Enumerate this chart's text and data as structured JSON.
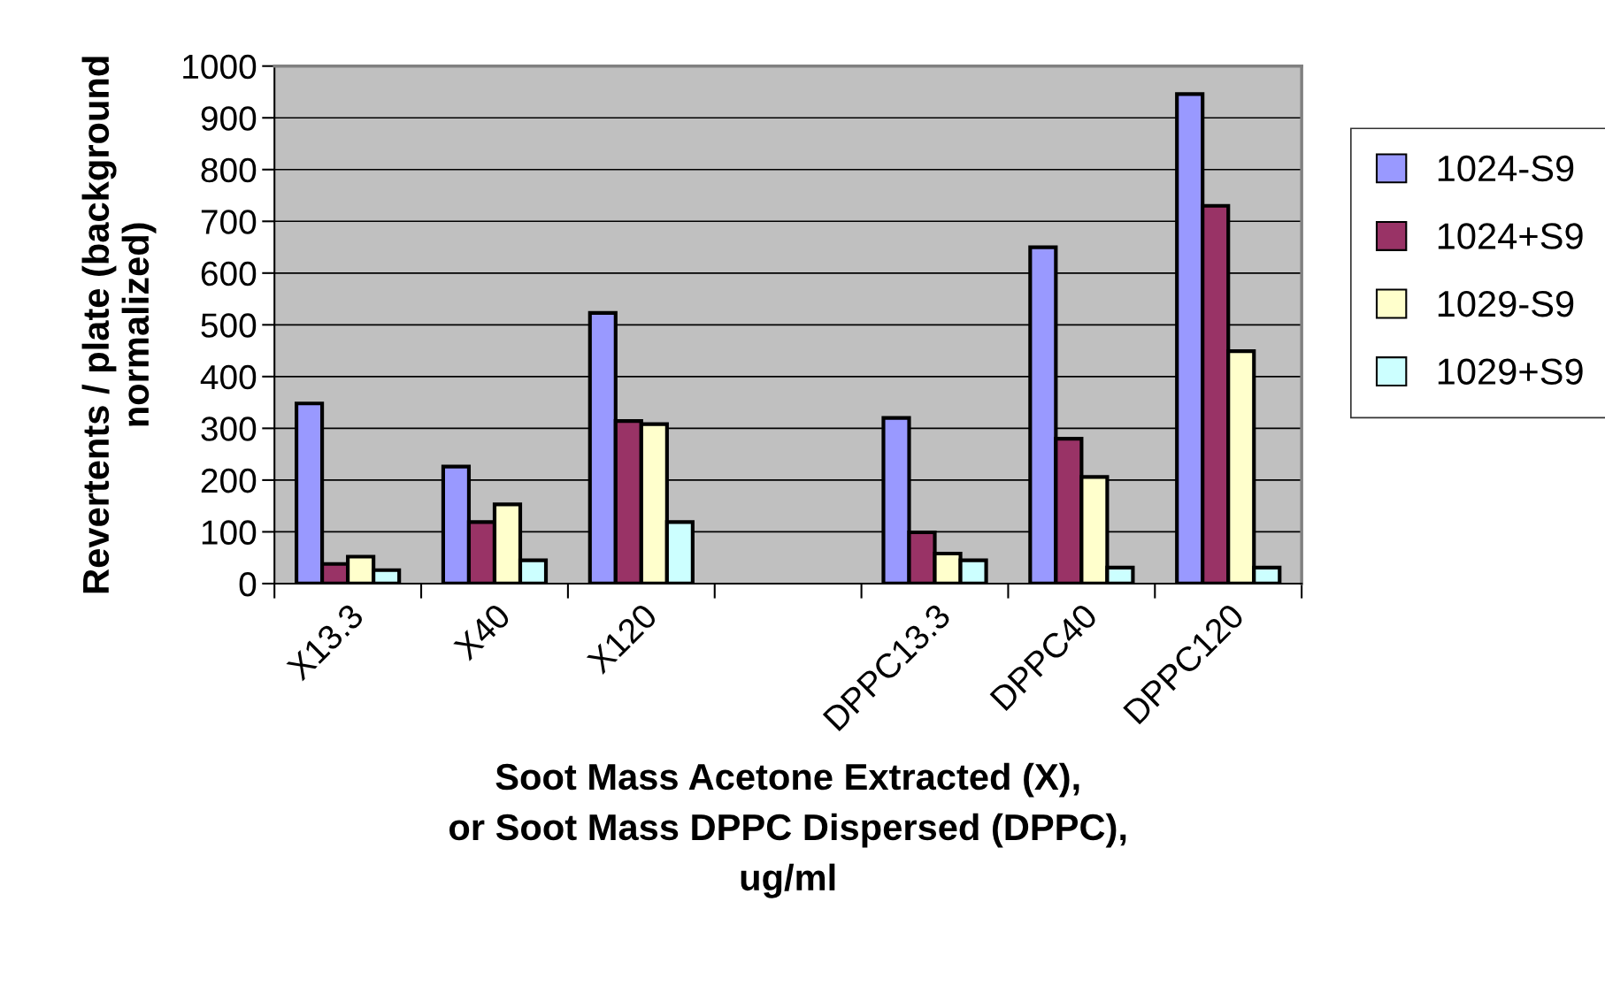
{
  "chart_data": {
    "type": "bar",
    "xlabel": "Soot Mass Acetone Extracted (X),\nor Soot Mass DPPC Dispersed (DPPC),\nug/ml",
    "ylabel": "Revertents / plate (background\nnormalized)",
    "categories": [
      "X13.3",
      "X40",
      "X120",
      null,
      "DPPC13.3",
      "DPPC40",
      "DPPC120"
    ],
    "series": [
      {
        "name": "1024-S9",
        "color": "#9999ff",
        "values": [
          348,
          226,
          523,
          null,
          320,
          650,
          946
        ]
      },
      {
        "name": "1024+S9",
        "color": "#993366",
        "values": [
          38,
          119,
          314,
          null,
          99,
          280,
          730
        ]
      },
      {
        "name": "1029-S9",
        "color": "#ffffcc",
        "values": [
          52,
          153,
          308,
          null,
          58,
          206,
          449
        ]
      },
      {
        "name": "1029+S9",
        "color": "#ccffff",
        "values": [
          26,
          45,
          119,
          null,
          45,
          31,
          31
        ]
      }
    ],
    "ylim": [
      0,
      1000
    ],
    "yticks": [
      0,
      100,
      200,
      300,
      400,
      500,
      600,
      700,
      800,
      900,
      1000
    ],
    "grid": "y",
    "legend": "right"
  }
}
